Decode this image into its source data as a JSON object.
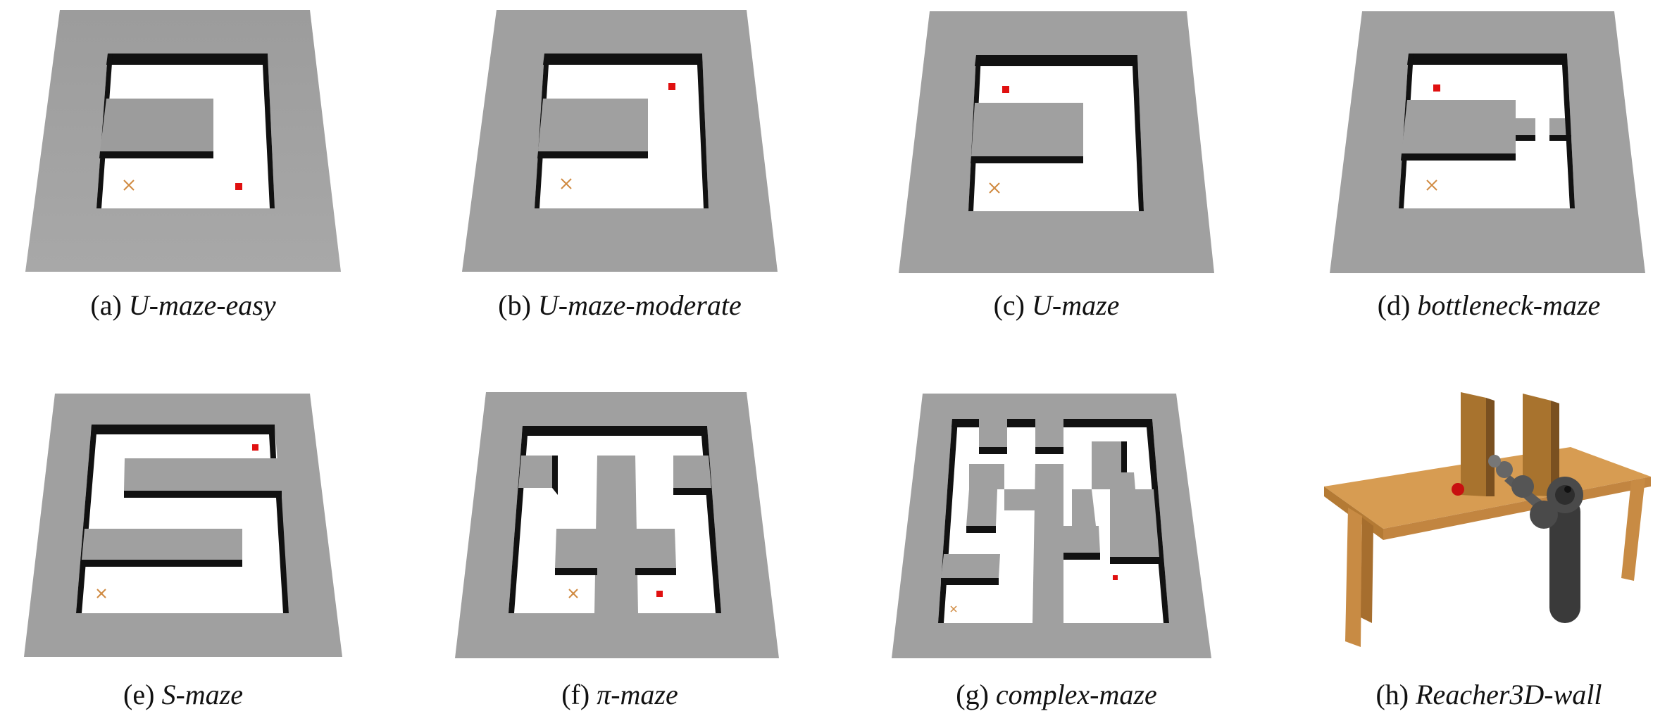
{
  "figure": {
    "panels": [
      {
        "tag": "(a)",
        "name": "U-maze-easy"
      },
      {
        "tag": "(b)",
        "name": "U-maze-moderate"
      },
      {
        "tag": "(c)",
        "name": "U-maze"
      },
      {
        "tag": "(d)",
        "name": "bottleneck-maze"
      },
      {
        "tag": "(e)",
        "name": "S-maze"
      },
      {
        "tag": "(f)",
        "name": "π-maze"
      },
      {
        "tag": "(g)",
        "name": "complex-maze"
      },
      {
        "tag": "(h)",
        "name": "Reacher3D-wall"
      }
    ]
  },
  "colors": {
    "wall_top": "#9a9a9a",
    "wall_side": "#111111",
    "floor": "#ffffff",
    "goal": "#e01010",
    "start": "#d08a40",
    "table": "#d4974a",
    "arm": "#3a3a3a"
  }
}
